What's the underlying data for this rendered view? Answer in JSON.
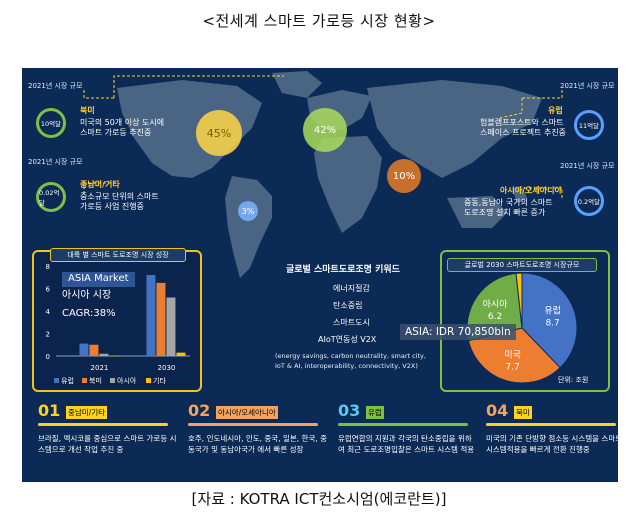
{
  "title": "<전세계 스마트 가로등 시장 현황>",
  "source": "[자료 : KOTRA ICT컨소시엄(에코란트)]",
  "regions": {
    "north_america": {
      "year_label": "2021년 시장 규모",
      "value": "10억달",
      "name": "북미",
      "desc": [
        "미국의 50개 이상 도시에",
        "스마트 가로등 추진중"
      ]
    },
    "latin_america": {
      "year_label": "2021년 시장 규모",
      "value": "0.02억달",
      "name": "중남미/기타",
      "desc": [
        "중소규모 단위의 스마트",
        "가로등  사업 진행중"
      ]
    },
    "europe": {
      "year_label": "2021년 시장 규모",
      "value": "11억달",
      "name": "유럽",
      "desc": [
        "험블램프포스트와 스마트",
        "스페이스 프로젝트 추진중"
      ]
    },
    "asia": {
      "year_label": "2021년 시장 규모",
      "value": "0.2억달",
      "name": "아시아/오세아니아",
      "desc": [
        "중동,동남아 국가의 스마트",
        "도로조명 설치 빠른 증가"
      ]
    }
  },
  "map_bubbles": {
    "na": "45%",
    "eu": "42%",
    "asia": "10%",
    "sa": "3%"
  },
  "bar_chart": {
    "header": "대륙 별 스마트 도로조명 시장 성장",
    "annotation": [
      "ASIA Market",
      "아시아 시장",
      "CAGR:38%"
    ],
    "chart_data": {
      "type": "bar",
      "categories": [
        "2021",
        "2030"
      ],
      "series": [
        {
          "name": "유럽",
          "color": "#4472c4",
          "values": [
            1.1,
            7.2
          ]
        },
        {
          "name": "북미",
          "color": "#ed7d31",
          "values": [
            1.0,
            6.5
          ]
        },
        {
          "name": "아시아",
          "color": "#a5a5a5",
          "values": [
            0.2,
            5.2
          ]
        },
        {
          "name": "기타",
          "color": "#ffc000",
          "values": [
            0.02,
            0.3
          ]
        }
      ],
      "ylim": [
        0,
        8
      ],
      "yticks": [
        "0",
        "2",
        "4",
        "6",
        "8"
      ]
    }
  },
  "keywords": {
    "title": "글로벌 스마트도로조명 키워드",
    "items": [
      "에너지절감",
      "탄소중립",
      "스마트도시",
      "AIoT연동성 V2X"
    ],
    "desc": [
      "(energy savings, carbon neutrality, smart city,",
      "IoT & AI, interoperability, connectivity, V2X)"
    ]
  },
  "pie_chart": {
    "header": "글로벌 2030 스마트도로조명 시장규모",
    "asia_label": "ASIA: IDR 70,850bln",
    "unit": "단위: 조원",
    "chart_data": {
      "type": "pie",
      "slices": [
        {
          "name": "유럽",
          "value": 8.7,
          "color": "#4472c4"
        },
        {
          "name": "미국",
          "value": 7.7,
          "color": "#ed7d31"
        },
        {
          "name": "아시아",
          "value": 6.2,
          "color": "#70ad47"
        },
        {
          "name": "",
          "value": 0.4,
          "color": "#ffc000"
        }
      ]
    }
  },
  "bottom": [
    {
      "num": "01",
      "tag": "중남미/기타",
      "tag_color": "#ffd21f",
      "num_color": "#ffd21f",
      "desc": "브라질, 멕시코를 중심으로 스마트 가로등 시스템으로 개선 작업 추진 중"
    },
    {
      "num": "02",
      "tag": "아시아/오세아니아",
      "tag_color": "#f4a460",
      "num_color": "#f4a460",
      "desc": "호주, 인도네시아, 인도, 중국, 일본, 한국, 중동국가 및 동남아국가 에서 빠른 성장"
    },
    {
      "num": "03",
      "tag": "유럽",
      "tag_color": "#7dc143",
      "num_color": "#5ac8f0",
      "desc": "유럽연합의 지원과 각국의 탄소중립을 위하여 최근 도로조명입찰은 스마트 시스템 적용"
    },
    {
      "num": "04",
      "tag": "북미",
      "tag_color": "#ffd21f",
      "num_color": "#f4a460",
      "desc": "미국의 기존 단방향 점소등 시스템을 스마트 시스템적용을 빠르게 전환 진행중"
    }
  ]
}
